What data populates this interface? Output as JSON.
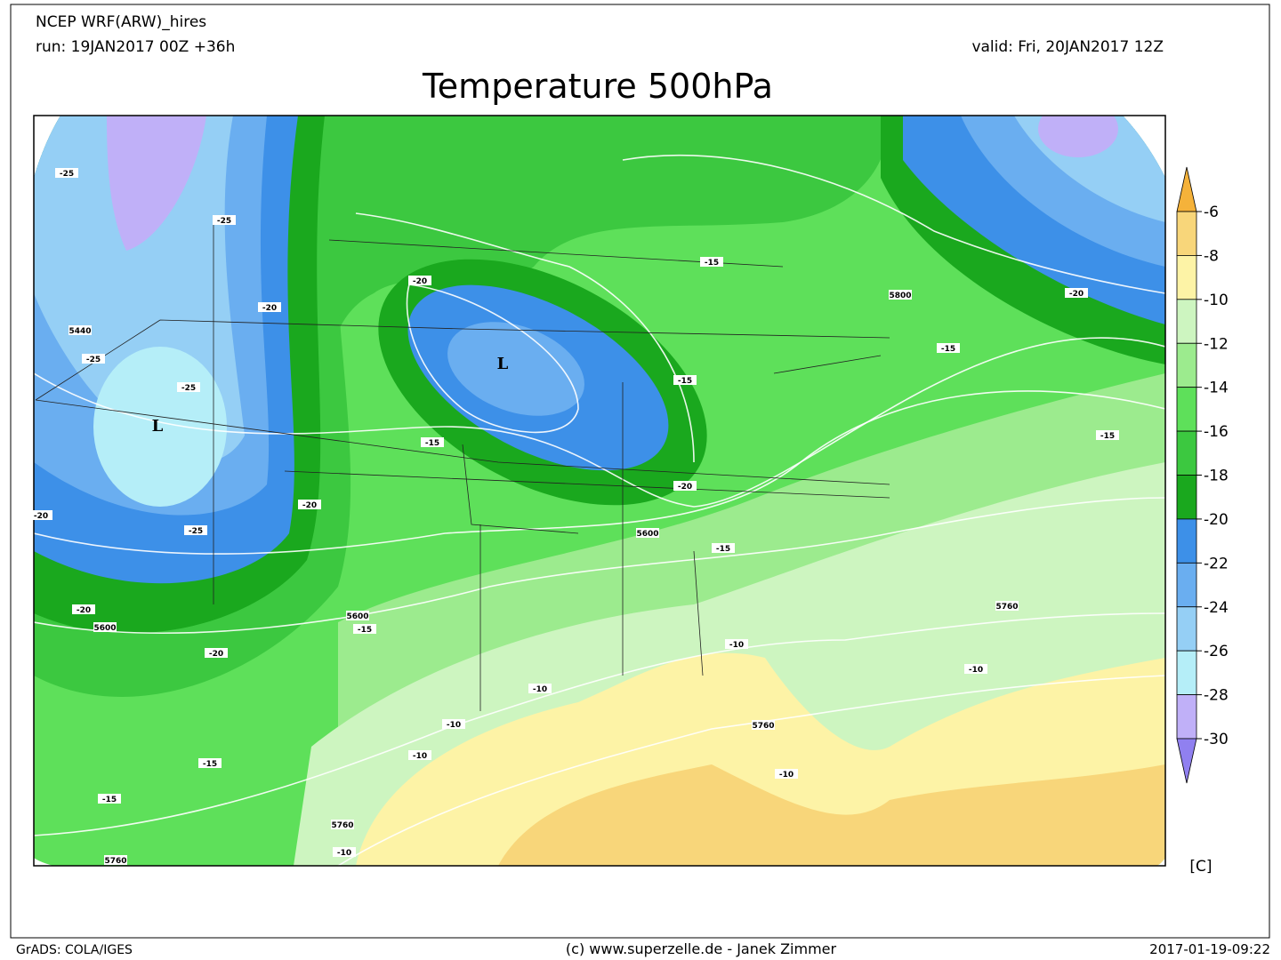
{
  "header": {
    "model": "NCEP WRF(ARW)_hires",
    "run": "run: 19JAN2017 00Z +36h",
    "valid": "valid: Fri, 20JAN2017 12Z",
    "title": "Temperature 500hPa"
  },
  "colorbar": {
    "levels": [
      -6,
      -8,
      -10,
      -12,
      -14,
      -16,
      -18,
      -20,
      -22,
      -24,
      -26,
      -28,
      -30
    ],
    "colors": [
      "#f5b23a",
      "#f8d67a",
      "#fdf3a6",
      "#cdf5c0",
      "#9ceb8e",
      "#5ee05a",
      "#3cc840",
      "#1aa81e",
      "#3d90e8",
      "#6aaef0",
      "#95cff5",
      "#b5eef8",
      "#c0b0f8",
      "#9080f0"
    ],
    "unit": "[C]"
  },
  "map": {
    "lows": [
      "L",
      "L"
    ],
    "contour_labels": [
      -25,
      -25,
      -20,
      5440,
      -25,
      -25,
      -20,
      -15,
      5800,
      -20,
      -15,
      -15,
      -15,
      -15,
      -20,
      -20,
      -25,
      -20,
      5600,
      -15,
      -20,
      5600,
      5600,
      -15,
      -20,
      5760,
      -10,
      -10,
      -10,
      -10,
      5760,
      -10,
      -15,
      -10,
      -15,
      5760,
      -10,
      5760
    ]
  },
  "footer": {
    "left": "GrADS: COLA/IGES",
    "center": "(c) www.superzelle.de - Janek Zimmer",
    "right": "2017-01-19-09:22"
  }
}
